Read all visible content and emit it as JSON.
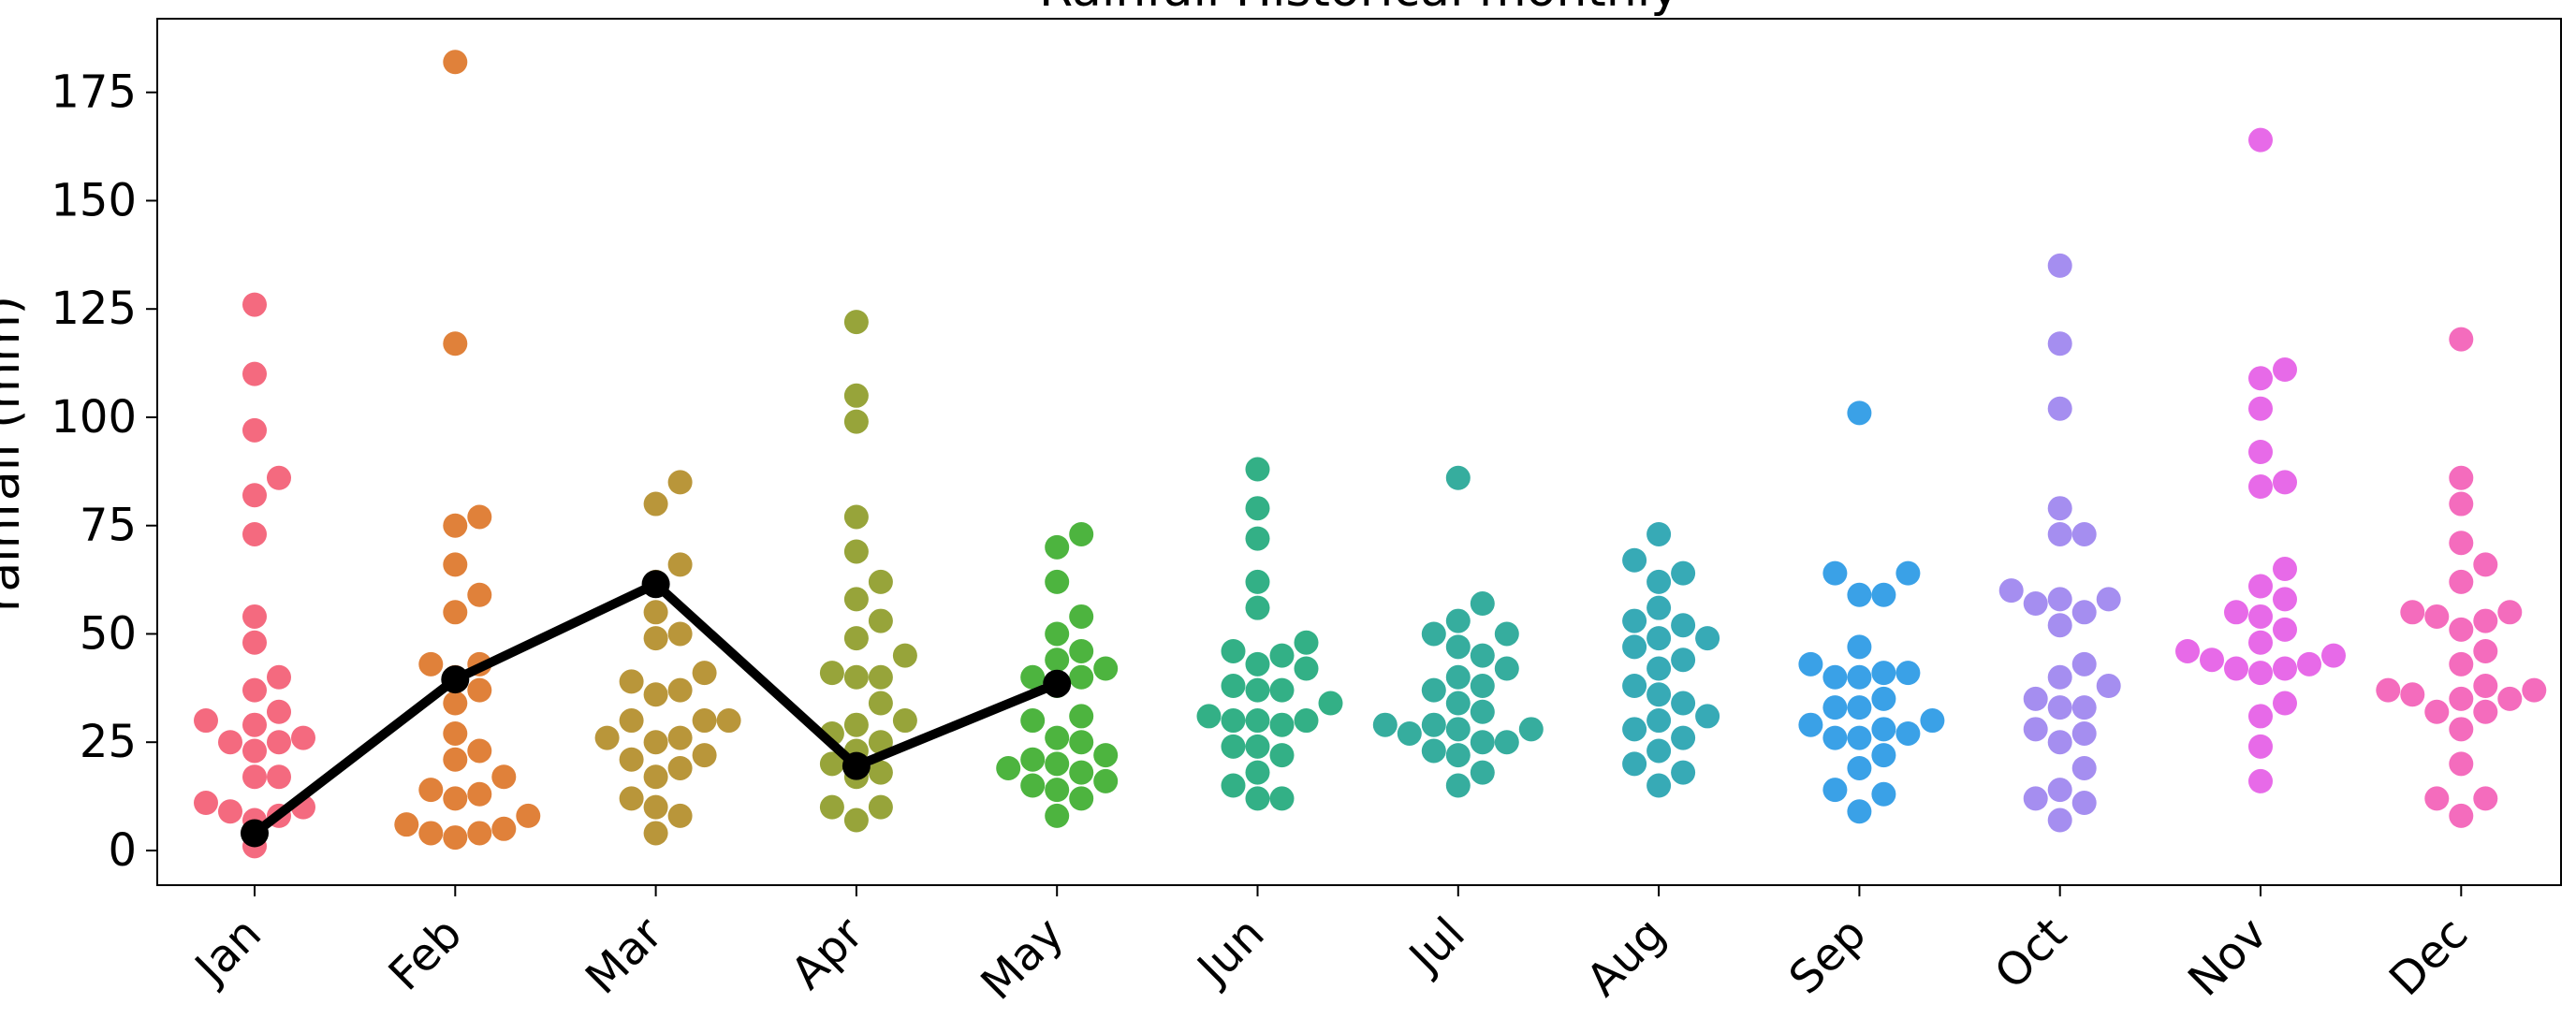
{
  "chart_data": {
    "type": "scatter",
    "title": "Rainfall Historical monthly",
    "xlabel": "",
    "ylabel": "rainfall (mm)",
    "ylim": [
      -8,
      192
    ],
    "y_ticks": [
      0,
      25,
      50,
      75,
      100,
      125,
      150,
      175
    ],
    "categories": [
      "Jan",
      "Feb",
      "Mar",
      "Apr",
      "May",
      "Jun",
      "Jul",
      "Aug",
      "Sep",
      "Oct",
      "Nov",
      "Dec"
    ],
    "colors": [
      "#f46a7f",
      "#e0813a",
      "#b9963a",
      "#97a43a",
      "#4db43f",
      "#33b086",
      "#36ad9e",
      "#37aab6",
      "#3aa1e7",
      "#a58ef0",
      "#e76ae8",
      "#f46cbd"
    ],
    "series": [
      {
        "values": [
          [
            1,
            10,
            8,
            7,
            9,
            11,
            17,
            17,
            23,
            25,
            26,
            25,
            30,
            29,
            32,
            37,
            40,
            48,
            54,
            73,
            82,
            86,
            97,
            110,
            126
          ],
          [
            3,
            4,
            4,
            5,
            6,
            8,
            12,
            13,
            14,
            17,
            21,
            23,
            27,
            34,
            37,
            40,
            43,
            43,
            55,
            59,
            66,
            75,
            77,
            117,
            182
          ],
          [
            4,
            8,
            10,
            12,
            17,
            19,
            21,
            22,
            25,
            26,
            26,
            30,
            30,
            30,
            36,
            37,
            39,
            41,
            49,
            50,
            55,
            62,
            66,
            80,
            85
          ],
          [
            7,
            10,
            10,
            17,
            18,
            20,
            23,
            25,
            27,
            29,
            30,
            34,
            40,
            40,
            41,
            45,
            49,
            53,
            58,
            62,
            69,
            77,
            99,
            105,
            122
          ],
          [
            8,
            12,
            14,
            15,
            16,
            18,
            19,
            20,
            21,
            22,
            25,
            26,
            30,
            31,
            38,
            40,
            40,
            42,
            44,
            46,
            50,
            54,
            62,
            70,
            73
          ],
          [
            12,
            12,
            15,
            18,
            22,
            24,
            24,
            29,
            30,
            30,
            30,
            31,
            34,
            37,
            37,
            38,
            42,
            43,
            45,
            46,
            48,
            56,
            62,
            72,
            79,
            88
          ],
          [
            15,
            18,
            22,
            23,
            25,
            25,
            27,
            28,
            28,
            29,
            29,
            32,
            34,
            37,
            38,
            40,
            42,
            45,
            47,
            50,
            50,
            53,
            57,
            86
          ],
          [
            15,
            18,
            20,
            23,
            26,
            28,
            30,
            31,
            34,
            36,
            38,
            42,
            44,
            47,
            49,
            49,
            52,
            53,
            56,
            62,
            64,
            67,
            73
          ],
          [
            9,
            13,
            14,
            19,
            22,
            26,
            26,
            27,
            28,
            29,
            30,
            33,
            33,
            35,
            40,
            40,
            41,
            41,
            43,
            47,
            59,
            59,
            64,
            64,
            101
          ],
          [
            7,
            11,
            12,
            14,
            19,
            25,
            27,
            28,
            33,
            33,
            35,
            38,
            40,
            43,
            52,
            55,
            57,
            58,
            58,
            60,
            73,
            73,
            79,
            102,
            117,
            135
          ],
          [
            16,
            24,
            31,
            34,
            41,
            42,
            42,
            43,
            44,
            45,
            46,
            48,
            51,
            54,
            55,
            58,
            61,
            65,
            84,
            85,
            92,
            102,
            109,
            111,
            164
          ],
          [
            8,
            12,
            12,
            20,
            28,
            32,
            32,
            35,
            35,
            36,
            37,
            37,
            38,
            43,
            46,
            51,
            53,
            54,
            55,
            55,
            62,
            66,
            71,
            80,
            86,
            118
          ]
        ]
      },
      {
        "type": "line",
        "color": "#000000",
        "x": [
          "Jan",
          "Feb",
          "Mar",
          "Apr",
          "May"
        ],
        "values": [
          4,
          39.5,
          61.5,
          19.5,
          38.5
        ]
      }
    ],
    "legend": "none",
    "grid": false
  }
}
